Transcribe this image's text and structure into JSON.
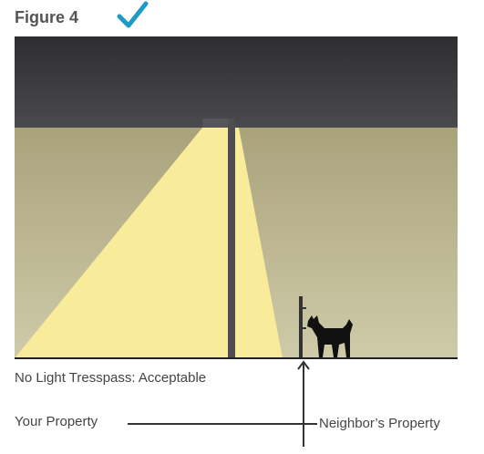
{
  "header": {
    "title": "Figure 4"
  },
  "caption": "No Light Tresspass: Acceptable",
  "labels": {
    "left": "Your Property",
    "right": "Neighbor’s Property"
  }
}
